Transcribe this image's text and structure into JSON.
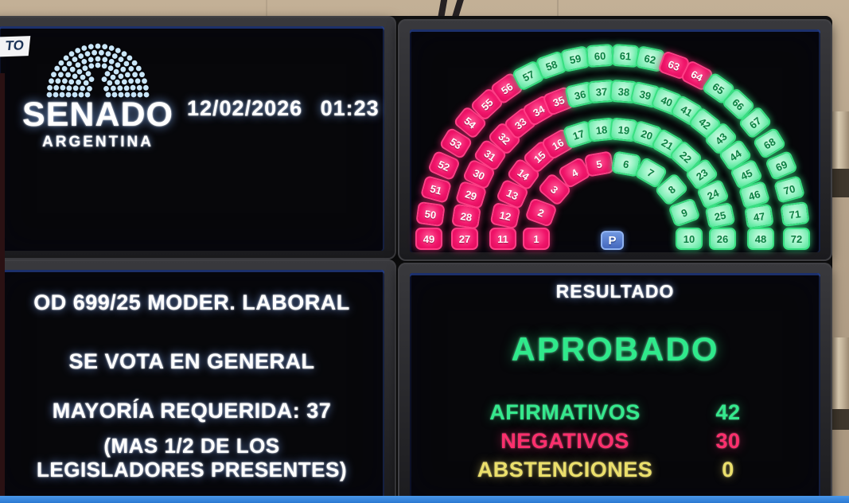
{
  "overlay": {
    "corner_tag_text": "TO",
    "bottom_bar_color": "#2e80d8"
  },
  "header_panel": {
    "logo_title": "SENADO",
    "logo_subtitle": "ARGENTINA",
    "datetime": "12/02/2026 01:23"
  },
  "motion_panel": {
    "line1": "OD 699/25 MODER. LABORAL",
    "line2": "SE VOTA EN GENERAL",
    "line3": "MAYORÍA REQUERIDA: 37",
    "line4": "(MAS 1/2 DE LOS LEGISLADORES PRESENTES)"
  },
  "result_panel": {
    "title": "RESULTADO",
    "verdict": "APROBADO",
    "rows": [
      {
        "label": "AFIRMATIVOS",
        "value": "42",
        "color": "#35e98d"
      },
      {
        "label": "NEGATIVOS",
        "value": "30",
        "color": "#ff2f6d"
      },
      {
        "label": "ABSTENCIONES",
        "value": "0",
        "color": "#ebdf6b"
      }
    ]
  },
  "hemicycle": {
    "president_seat_label": "P",
    "colors": {
      "affirmative": "#49e694",
      "negative": "#ee0f64",
      "president": "#4d79cf"
    },
    "rings": [
      {
        "seats": [
          {
            "num": 1,
            "vote": "neg"
          },
          {
            "num": 2,
            "vote": "neg"
          },
          {
            "num": 3,
            "vote": "neg"
          },
          {
            "num": 4,
            "vote": "neg"
          },
          {
            "num": 5,
            "vote": "neg"
          },
          {
            "num": 6,
            "vote": "aff"
          },
          {
            "num": 7,
            "vote": "aff"
          },
          {
            "num": 8,
            "vote": "aff"
          },
          {
            "num": 9,
            "vote": "aff"
          },
          {
            "num": 10,
            "vote": "aff"
          }
        ]
      },
      {
        "seats": [
          {
            "num": 11,
            "vote": "neg"
          },
          {
            "num": 12,
            "vote": "neg"
          },
          {
            "num": 13,
            "vote": "neg"
          },
          {
            "num": 14,
            "vote": "neg"
          },
          {
            "num": 15,
            "vote": "neg"
          },
          {
            "num": 16,
            "vote": "neg"
          },
          {
            "num": 17,
            "vote": "aff"
          },
          {
            "num": 18,
            "vote": "aff"
          },
          {
            "num": 19,
            "vote": "aff"
          },
          {
            "num": 20,
            "vote": "aff"
          },
          {
            "num": 21,
            "vote": "aff"
          },
          {
            "num": 22,
            "vote": "aff"
          },
          {
            "num": 23,
            "vote": "aff"
          },
          {
            "num": 24,
            "vote": "aff"
          },
          {
            "num": 25,
            "vote": "aff"
          },
          {
            "num": 26,
            "vote": "aff"
          }
        ]
      },
      {
        "seats": [
          {
            "num": 27,
            "vote": "neg"
          },
          {
            "num": 28,
            "vote": "neg"
          },
          {
            "num": 29,
            "vote": "neg"
          },
          {
            "num": 30,
            "vote": "neg"
          },
          {
            "num": 31,
            "vote": "neg"
          },
          {
            "num": 32,
            "vote": "neg"
          },
          {
            "num": 33,
            "vote": "neg"
          },
          {
            "num": 34,
            "vote": "neg"
          },
          {
            "num": 35,
            "vote": "neg"
          },
          {
            "num": 36,
            "vote": "aff"
          },
          {
            "num": 37,
            "vote": "aff"
          },
          {
            "num": 38,
            "vote": "aff"
          },
          {
            "num": 39,
            "vote": "aff"
          },
          {
            "num": 40,
            "vote": "aff"
          },
          {
            "num": 41,
            "vote": "aff"
          },
          {
            "num": 42,
            "vote": "aff"
          },
          {
            "num": 43,
            "vote": "aff"
          },
          {
            "num": 44,
            "vote": "aff"
          },
          {
            "num": 45,
            "vote": "aff"
          },
          {
            "num": 46,
            "vote": "aff"
          },
          {
            "num": 47,
            "vote": "aff"
          },
          {
            "num": 48,
            "vote": "aff"
          }
        ]
      },
      {
        "seats": [
          {
            "num": 49,
            "vote": "neg"
          },
          {
            "num": 50,
            "vote": "neg"
          },
          {
            "num": 51,
            "vote": "neg"
          },
          {
            "num": 52,
            "vote": "neg"
          },
          {
            "num": 53,
            "vote": "neg"
          },
          {
            "num": 54,
            "vote": "neg"
          },
          {
            "num": 55,
            "vote": "neg"
          },
          {
            "num": 56,
            "vote": "neg"
          },
          {
            "num": 57,
            "vote": "aff"
          },
          {
            "num": 58,
            "vote": "aff"
          },
          {
            "num": 59,
            "vote": "aff"
          },
          {
            "num": 60,
            "vote": "aff"
          },
          {
            "num": 61,
            "vote": "aff"
          },
          {
            "num": 62,
            "vote": "aff"
          },
          {
            "num": 63,
            "vote": "neg"
          },
          {
            "num": 64,
            "vote": "neg"
          },
          {
            "num": 65,
            "vote": "aff"
          },
          {
            "num": 66,
            "vote": "aff"
          },
          {
            "num": 67,
            "vote": "aff"
          },
          {
            "num": 68,
            "vote": "aff"
          },
          {
            "num": 69,
            "vote": "aff"
          },
          {
            "num": 70,
            "vote": "aff"
          },
          {
            "num": 71,
            "vote": "aff"
          },
          {
            "num": 72,
            "vote": "aff"
          }
        ]
      }
    ]
  }
}
